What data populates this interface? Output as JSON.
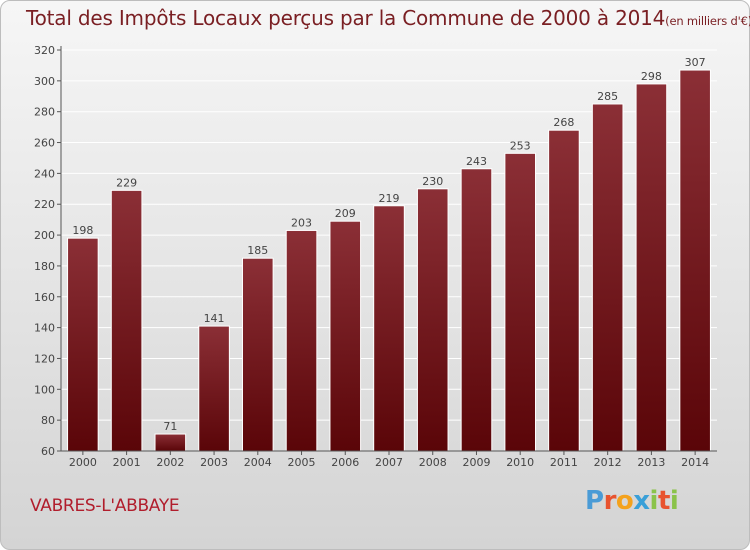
{
  "title": "Total des Impôts Locaux perçus par la Commune de 2000 à 2014",
  "title_unit": "(en milliers d'€)",
  "commune": "VABRES-L'ABBAYE",
  "logo": {
    "letters": [
      "P",
      "r",
      "o",
      "x",
      "i",
      "t",
      "i"
    ],
    "colors": [
      "#4a9bd6",
      "#e8532f",
      "#f4a21d",
      "#3aa0d8",
      "#8bc34a",
      "#e8532f",
      "#8bc34a"
    ]
  },
  "colors": {
    "bar_top": "#8b2f36",
    "bar_bottom": "#5a0508",
    "axis": "#555555",
    "grid": "#ffffff",
    "title": "#7a1f23"
  },
  "chart_data": {
    "type": "bar",
    "categories": [
      "2000",
      "2001",
      "2002",
      "2003",
      "2004",
      "2005",
      "2006",
      "2007",
      "2008",
      "2009",
      "2010",
      "2011",
      "2012",
      "2013",
      "2014"
    ],
    "values": [
      198,
      229,
      71,
      141,
      185,
      203,
      209,
      219,
      230,
      243,
      253,
      268,
      285,
      298,
      307
    ],
    "ylim": [
      60,
      320
    ],
    "yticks": [
      60,
      80,
      100,
      120,
      140,
      160,
      180,
      200,
      220,
      240,
      260,
      280,
      300,
      320
    ],
    "grid": true
  }
}
